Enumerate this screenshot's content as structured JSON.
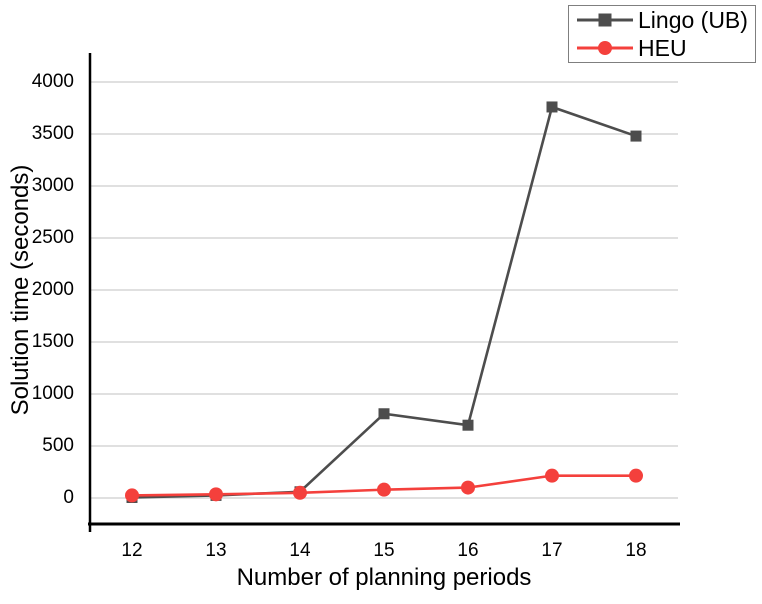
{
  "figure": {
    "background": "#ffffff"
  },
  "chart_data": {
    "type": "line",
    "title": "",
    "xlabel": "Number of planning periods",
    "ylabel": "Solution time (seconds)",
    "categories": [
      "12",
      "13",
      "14",
      "15",
      "16",
      "17",
      "18"
    ],
    "series": [
      {
        "name": "Lingo (UB)",
        "marker": "square",
        "color": "#4d4d4d",
        "values": [
          5,
          25,
          60,
          810,
          700,
          3760,
          3480
        ]
      },
      {
        "name": "HEU",
        "marker": "circle",
        "color": "#f4403c",
        "values": [
          25,
          35,
          50,
          80,
          100,
          215,
          215
        ]
      }
    ],
    "ylim": [
      0,
      4000
    ],
    "yticks": [
      0,
      500,
      1000,
      1500,
      2000,
      2500,
      3000,
      3500,
      4000
    ],
    "grid": "horizontal",
    "grid_color": "#d6d6d6",
    "axis_color": "#000000",
    "legend": {
      "position": "top-right",
      "border_color": "#7f7f7f",
      "entries": [
        "Lingo (UB)",
        "HEU"
      ]
    }
  }
}
